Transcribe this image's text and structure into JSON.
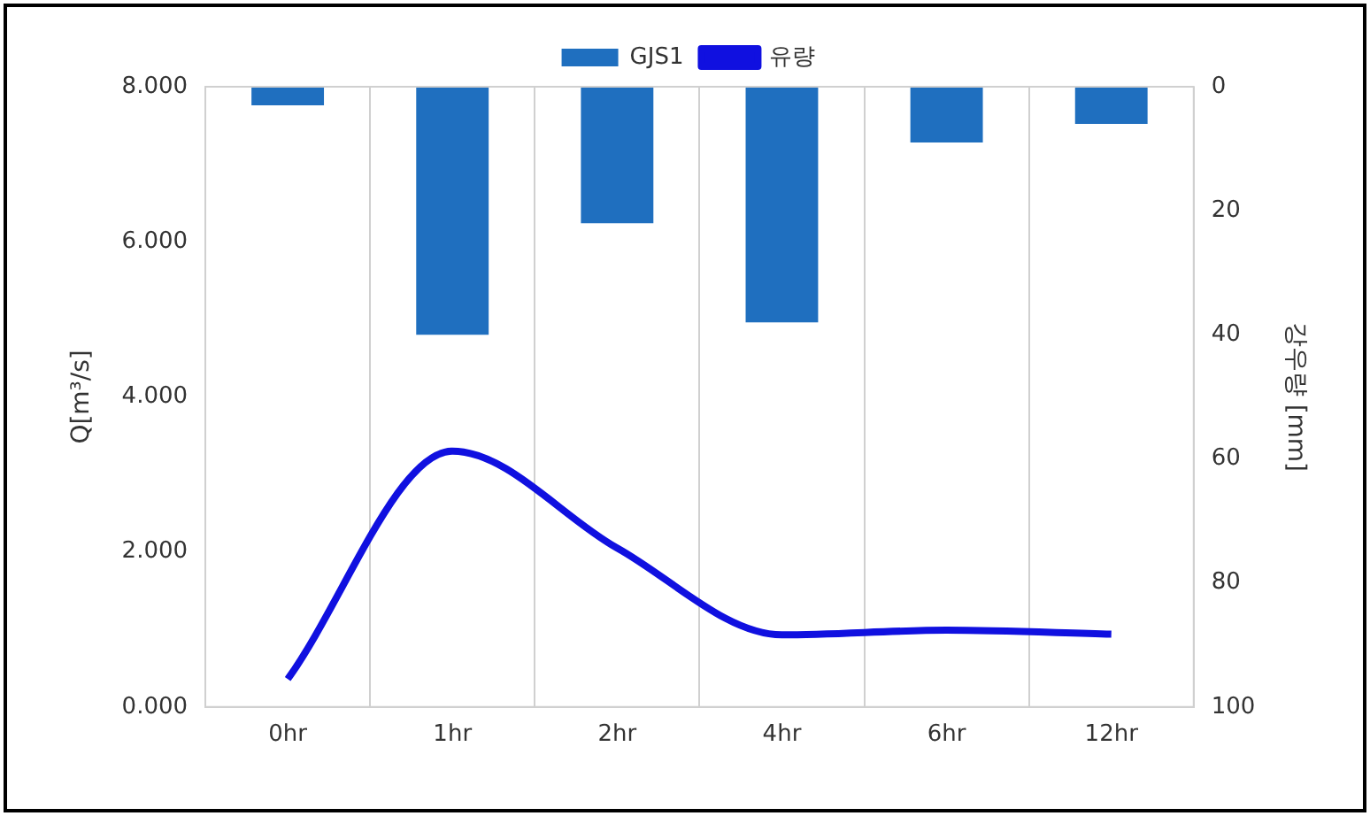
{
  "chart_data": {
    "type": "bar",
    "categories": [
      "0hr",
      "1hr",
      "2hr",
      "4hr",
      "6hr",
      "12hr"
    ],
    "series": [
      {
        "name": "GJS1",
        "axis": "y2",
        "color": "#1f6fbf",
        "values": [
          3,
          40,
          22,
          38,
          9,
          6
        ]
      },
      {
        "name": "유량",
        "type": "line",
        "axis": "y",
        "color": "#1010e0",
        "values": [
          0.36,
          3.3,
          2.05,
          0.93,
          0.99,
          0.94
        ]
      }
    ],
    "ylabel": "Q[m³/s]",
    "y2label": "강우량 [mm]",
    "ylim": [
      0,
      8
    ],
    "yticks": [
      {
        "value": 0,
        "label": "0.000"
      },
      {
        "value": 2,
        "label": "2.000"
      },
      {
        "value": 4,
        "label": "4.000"
      },
      {
        "value": 6,
        "label": "6.000"
      },
      {
        "value": 8,
        "label": "8.000"
      }
    ],
    "y2lim": [
      100,
      0
    ],
    "y2ticks": [
      0,
      20,
      40,
      60,
      80,
      100
    ],
    "grid": "x",
    "legend": "top",
    "marker": "none",
    "line_style": "solid"
  }
}
